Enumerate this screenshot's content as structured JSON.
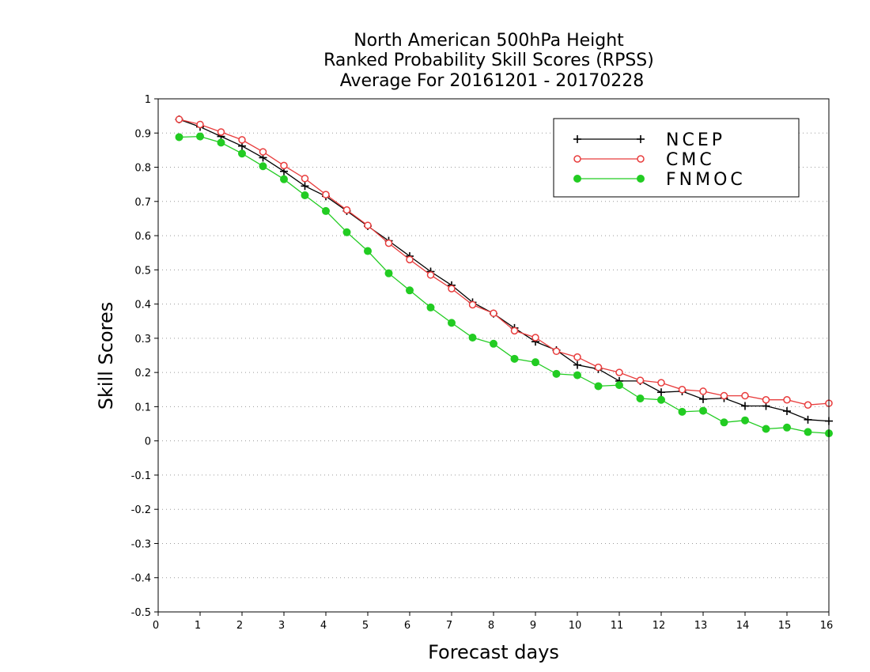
{
  "chart_data": {
    "type": "line",
    "title": [
      "North American 500hPa Height",
      "Ranked Probability Skill Scores (RPSS)",
      "Average For 20161201 - 20170228"
    ],
    "xlabel": "Forecast days",
    "ylabel": "Skill Scores",
    "xlim": [
      0,
      16
    ],
    "ylim": [
      -0.5,
      1
    ],
    "xticks": [
      0,
      1,
      2,
      3,
      4,
      5,
      6,
      7,
      8,
      9,
      10,
      11,
      12,
      13,
      14,
      15,
      16
    ],
    "yticks": [
      -0.5,
      -0.4,
      -0.3,
      -0.2,
      -0.1,
      0,
      0.1,
      0.2,
      0.3,
      0.4,
      0.5,
      0.6,
      0.7,
      0.8,
      0.9,
      1
    ],
    "ytick_labels": [
      "-0.5",
      "-0.4",
      "-0.3",
      "-0.2",
      "-0.1",
      "0",
      "0.1",
      "0.2",
      "0.3",
      "0.4",
      "0.5",
      "0.6",
      "0.7",
      "0.8",
      "0.9",
      "1"
    ],
    "grid": "horizontal-dotted",
    "legend_position": "top-right",
    "x": [
      0.5,
      1,
      1.5,
      2,
      2.5,
      3,
      3.5,
      4,
      4.5,
      5,
      5.5,
      6,
      6.5,
      7,
      7.5,
      8,
      8.5,
      9,
      9.5,
      10,
      10.5,
      11,
      11.5,
      12,
      12.5,
      13,
      13.5,
      14,
      14.5,
      15,
      15.5,
      16
    ],
    "series": [
      {
        "name": "NCEP",
        "color": "#000000",
        "marker": "plus",
        "values": [
          0.94,
          0.918,
          0.89,
          0.862,
          0.828,
          0.788,
          0.745,
          0.715,
          0.672,
          0.628,
          0.585,
          0.54,
          0.495,
          0.455,
          0.405,
          0.372,
          0.33,
          0.29,
          0.265,
          0.222,
          0.21,
          0.175,
          0.175,
          0.142,
          0.145,
          0.122,
          0.125,
          0.102,
          0.102,
          0.087,
          0.062,
          0.058
        ]
      },
      {
        "name": "CMC",
        "color": "#e83c3c",
        "marker": "open-circle",
        "values": [
          0.94,
          0.925,
          0.903,
          0.88,
          0.845,
          0.805,
          0.767,
          0.72,
          0.675,
          0.63,
          0.578,
          0.53,
          0.485,
          0.445,
          0.398,
          0.373,
          0.322,
          0.302,
          0.262,
          0.245,
          0.215,
          0.2,
          0.177,
          0.17,
          0.15,
          0.145,
          0.132,
          0.132,
          0.12,
          0.12,
          0.105,
          0.11
        ]
      },
      {
        "name": "FNMOC",
        "color": "#22cc22",
        "marker": "filled-circle",
        "values": [
          0.888,
          0.89,
          0.872,
          0.84,
          0.803,
          0.765,
          0.718,
          0.672,
          0.61,
          0.555,
          0.49,
          0.44,
          0.39,
          0.345,
          0.302,
          0.284,
          0.24,
          0.23,
          0.196,
          0.192,
          0.16,
          0.163,
          0.124,
          0.12,
          0.085,
          0.088,
          0.054,
          0.06,
          0.035,
          0.039,
          0.026,
          0.022
        ]
      }
    ]
  }
}
